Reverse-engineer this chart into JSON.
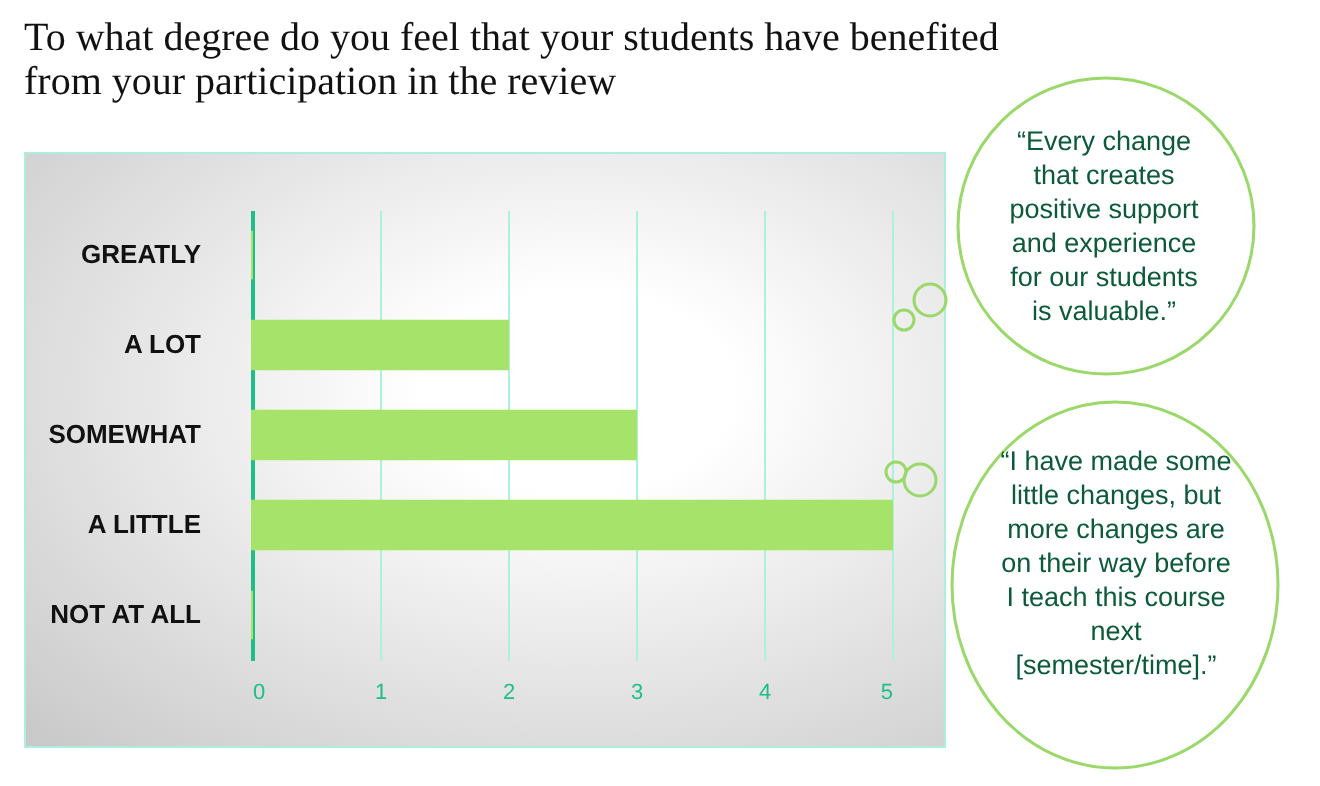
{
  "chart_data": {
    "type": "bar",
    "orientation": "horizontal",
    "title": "To what degree do you feel that your students have benefited from your participation in the review",
    "categories": [
      "GREATLY",
      "A LOT",
      "SOMEWHAT",
      "A LITTLE",
      "NOT AT ALL"
    ],
    "values": [
      0,
      2,
      3,
      5,
      0
    ],
    "color": "#a6e36a",
    "xlim": [
      0,
      5
    ],
    "xticks": [
      0,
      1,
      2,
      3,
      4,
      5
    ],
    "grid": "x",
    "annotations": [
      "“Every change that creates positive support and experience for our students is valuable.”",
      "“I have made some little changes, but more changes are on their way before I teach this course next [semester/time].”"
    ]
  }
}
